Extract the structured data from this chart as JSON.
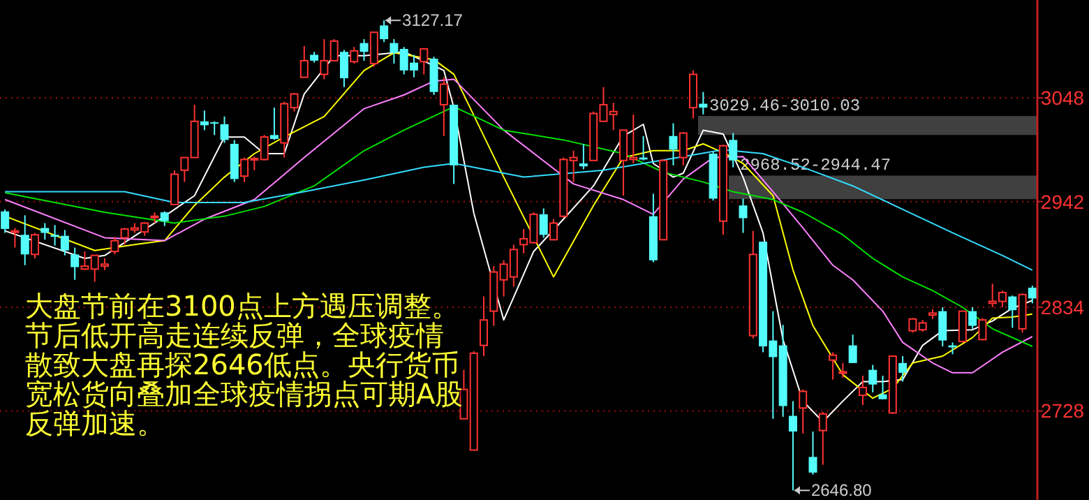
{
  "chart_data": {
    "type": "candlestick",
    "categories": [
      null,
      null,
      null,
      null,
      null,
      null,
      null,
      null,
      null,
      null,
      null,
      null,
      null,
      null,
      null,
      null,
      null,
      null,
      null,
      null,
      null,
      null,
      null,
      null,
      null,
      null,
      null,
      null,
      null,
      null,
      null,
      null,
      null,
      null,
      null,
      null,
      null,
      null,
      null,
      null,
      null,
      null,
      null,
      null,
      null,
      null,
      null,
      null,
      null,
      null,
      null,
      null,
      null,
      null,
      null,
      null,
      null,
      null,
      null,
      null,
      null,
      null,
      null,
      null,
      null,
      null,
      null,
      null,
      null,
      null,
      null,
      null,
      null,
      null,
      null,
      null,
      null,
      null,
      null,
      null,
      null,
      null,
      null,
      null,
      null,
      null,
      null,
      null,
      null,
      null,
      null,
      null,
      null,
      null,
      null,
      null,
      null,
      null,
      null,
      null,
      null,
      null,
      null,
      null
    ],
    "ohlc": [
      [
        2932,
        2934,
        2910,
        2914
      ],
      [
        2911,
        2915,
        2895,
        2912
      ],
      [
        2908,
        2928,
        2877,
        2888
      ],
      [
        2888,
        2910,
        2884,
        2908
      ],
      [
        2915,
        2920,
        2903,
        2910
      ],
      [
        2908,
        2918,
        2897,
        2906
      ],
      [
        2907,
        2913,
        2887,
        2892
      ],
      [
        2888,
        2895,
        2862,
        2875
      ],
      [
        2873,
        2891,
        2872,
        2876
      ],
      [
        2873,
        2887,
        2860,
        2887
      ],
      [
        2876,
        2884,
        2872,
        2878
      ],
      [
        2891,
        2906,
        2888,
        2902
      ],
      [
        2905,
        2915,
        2898,
        2914
      ],
      [
        2913,
        2920,
        2910,
        2915
      ],
      [
        2911,
        2921,
        2907,
        2920
      ],
      [
        2926,
        2931,
        2920,
        2927
      ],
      [
        2931,
        2932,
        2917,
        2922
      ],
      [
        2939,
        2974,
        2939,
        2970
      ],
      [
        2974,
        2987,
        2962,
        2987
      ],
      [
        2987,
        3041,
        2987,
        3024
      ],
      [
        3024,
        3035,
        3015,
        3020
      ],
      [
        3023,
        3024,
        3010,
        3022
      ],
      [
        3021,
        3029,
        3002,
        3005
      ],
      [
        3001,
        3005,
        2962,
        2965
      ],
      [
        2968,
        2987,
        2962,
        2985
      ],
      [
        2985,
        2988,
        2974,
        2986
      ],
      [
        2985,
        3010,
        2984,
        3008
      ],
      [
        3010,
        3038,
        3005,
        3006
      ],
      [
        3002,
        3044,
        2987,
        3042
      ],
      [
        3038,
        3053,
        3034,
        3052
      ],
      [
        3069,
        3101,
        3069,
        3086
      ],
      [
        3092,
        3095,
        3084,
        3086
      ],
      [
        3072,
        3108,
        3067,
        3086
      ],
      [
        3086,
        3108,
        3086,
        3106
      ],
      [
        3095,
        3097,
        3059,
        3068
      ],
      [
        3085,
        3100,
        3083,
        3096
      ],
      [
        3104,
        3108,
        3086,
        3095
      ],
      [
        3083,
        3115,
        3080,
        3115
      ],
      [
        3122,
        3127.17,
        3105,
        3108
      ],
      [
        3104,
        3108,
        3083,
        3094
      ],
      [
        3098,
        3100,
        3072,
        3076
      ],
      [
        3084,
        3092,
        3069,
        3076
      ],
      [
        3085,
        3098,
        3072,
        3098
      ],
      [
        3088,
        3090,
        3051,
        3054
      ],
      [
        3041,
        3069,
        3009,
        3062
      ],
      [
        3041,
        3041,
        2960,
        2979
      ],
      [
        2720,
        2770,
        2720,
        2750
      ],
      [
        2688,
        2789,
        2688,
        2787
      ],
      [
        2795,
        2845,
        2784,
        2821
      ],
      [
        2830,
        2876,
        2815,
        2870
      ],
      [
        2862,
        2882,
        2845,
        2878
      ],
      [
        2865,
        2898,
        2855,
        2893
      ],
      [
        2898,
        2914,
        2889,
        2904
      ],
      [
        2900,
        2931,
        2899,
        2929
      ],
      [
        2929,
        2935,
        2905,
        2908
      ],
      [
        2903,
        2924,
        2903,
        2920
      ],
      [
        2927,
        2987,
        2925,
        2985
      ],
      [
        2984,
        2994,
        2962,
        2987
      ],
      [
        2981,
        3001,
        2975,
        2978
      ],
      [
        2984,
        3034,
        2984,
        3032
      ],
      [
        3024,
        3059,
        3024,
        3041
      ],
      [
        3031,
        3043,
        3015,
        3034
      ],
      [
        2984,
        3015,
        2948,
        3015
      ],
      [
        2985,
        3031,
        2981,
        2987
      ],
      [
        2987,
        3009,
        2984,
        2985
      ],
      [
        2927,
        2950,
        2880,
        2882
      ],
      [
        2903,
        2985,
        2903,
        2984
      ],
      [
        3009,
        3022,
        2979,
        2995
      ],
      [
        2987,
        3013,
        2979,
        3012
      ],
      [
        3038,
        3076,
        3027,
        3072
      ],
      [
        3042,
        3054,
        3031,
        3038
      ],
      [
        2991,
        2993,
        2943,
        2945
      ],
      [
        2922,
        3000,
        2908,
        2999
      ],
      [
        3005,
        3012,
        2977,
        2984
      ],
      [
        2938,
        2945,
        2910,
        2925
      ],
      [
        2805,
        2912,
        2802,
        2888
      ],
      [
        2901,
        2901,
        2788,
        2794
      ],
      [
        2800,
        2830,
        2720,
        2783
      ],
      [
        2795,
        2816,
        2722,
        2733
      ],
      [
        2723,
        2738,
        2646.8,
        2707
      ],
      [
        2731,
        2750,
        2705,
        2748
      ],
      [
        2681,
        2707,
        2663,
        2665
      ],
      [
        2708,
        2727,
        2673,
        2725
      ],
      [
        2780,
        2788,
        2760,
        2785
      ],
      [
        2767,
        2777,
        2762,
        2768
      ],
      [
        2795,
        2806,
        2777,
        2777
      ],
      [
        2744,
        2764,
        2734,
        2752
      ],
      [
        2770,
        2775,
        2747,
        2755
      ],
      [
        2745,
        2764,
        2740,
        2740
      ],
      [
        2726,
        2784,
        2725,
        2784
      ],
      [
        2777,
        2784,
        2758,
        2767
      ],
      [
        2810,
        2823,
        2808,
        2822
      ],
      [
        2811,
        2821,
        2809,
        2818
      ],
      [
        2826,
        2832,
        2822,
        2828
      ],
      [
        2830,
        2834,
        2794,
        2800
      ],
      [
        2795,
        2798,
        2786,
        2793
      ],
      [
        2799,
        2830,
        2798,
        2830
      ],
      [
        2830,
        2834,
        2812,
        2815
      ],
      [
        2801,
        2823,
        2800,
        2821
      ],
      [
        2838,
        2858,
        2834,
        2840
      ],
      [
        2840,
        2851,
        2834,
        2849
      ],
      [
        2845,
        2846,
        2813,
        2831
      ],
      [
        2812,
        2848,
        2808,
        2847
      ],
      [
        2854,
        2856,
        2838,
        2843
      ]
    ],
    "series": [
      {
        "type": "line",
        "color": "#ffffff",
        "values": [
          2912,
          null,
          null,
          null,
          null,
          null,
          null,
          null,
          2884,
          null,
          2887,
          null,
          null,
          null,
          null,
          2920,
          null,
          null,
          null,
          2948,
          null,
          null,
          3008,
          null,
          3008,
          null,
          2991,
          null,
          2991,
          null,
          3052,
          null,
          null,
          3091,
          null,
          null,
          3091,
          null,
          null,
          null,
          3095,
          null,
          null,
          null,
          3076,
          3038,
          null,
          2930,
          null,
          null,
          2821,
          null,
          null,
          2891,
          null,
          null,
          2924,
          null,
          null,
          2958,
          null,
          null,
          3009,
          null,
          3021,
          2981,
          null,
          2967,
          2971,
          null,
          3015,
          null,
          3011,
          null,
          2967,
          null,
          2910,
          null,
          2801,
          null,
          2738,
          null,
          2717,
          null,
          2738,
          null,
          2758,
          null,
          2758,
          null,
          2760,
          null,
          2795,
          null,
          2810,
          null,
          null,
          2811,
          null,
          2820,
          null,
          2833,
          null,
          2841
        ]
      },
      {
        "type": "line",
        "color": "#ffff00",
        "values": [
          2927,
          null,
          null,
          null,
          null,
          null,
          null,
          null,
          null,
          2892,
          null,
          null,
          null,
          2898,
          null,
          null,
          2902,
          null,
          null,
          2938,
          null,
          null,
          2967,
          null,
          null,
          2991,
          null,
          null,
          3008,
          null,
          null,
          null,
          3029,
          null,
          null,
          null,
          3076,
          null,
          null,
          3094,
          null,
          null,
          null,
          3087,
          null,
          3072,
          null,
          null,
          null,
          null,
          2967,
          null,
          null,
          null,
          null,
          2865,
          null,
          null,
          null,
          2938,
          null,
          null,
          2987,
          null,
          null,
          2994,
          null,
          null,
          2994,
          null,
          3001,
          null,
          2992,
          null,
          2981,
          null,
          null,
          2948,
          null,
          2872,
          null,
          2815,
          null,
          null,
          2765,
          null,
          null,
          2741,
          null,
          2751,
          null,
          2777,
          null,
          null,
          2784,
          null,
          null,
          2803,
          null,
          2823,
          null,
          2824,
          null,
          2827
        ]
      },
      {
        "type": "line",
        "color": "#ff80ff",
        "values": [
          2944,
          null,
          null,
          null,
          null,
          null,
          null,
          null,
          null,
          null,
          2905,
          null,
          null,
          null,
          null,
          null,
          2902,
          null,
          null,
          null,
          2924,
          null,
          null,
          null,
          null,
          2944,
          null,
          null,
          null,
          null,
          2987,
          null,
          null,
          null,
          null,
          null,
          3037,
          null,
          null,
          null,
          3051,
          null,
          null,
          3065,
          null,
          3067,
          null,
          null,
          null,
          null,
          3015,
          null,
          null,
          null,
          null,
          null,
          null,
          2960,
          null,
          null,
          null,
          null,
          2944,
          null,
          null,
          2929,
          null,
          null,
          2965,
          null,
          null,
          2987,
          null,
          null,
          2988,
          null,
          null,
          2952,
          null,
          null,
          2915,
          null,
          null,
          2877,
          null,
          2862,
          null,
          null,
          2830,
          null,
          2798,
          null,
          null,
          2777,
          null,
          2767,
          null,
          2767,
          null,
          null,
          2788,
          null,
          null,
          2804
        ]
      },
      {
        "type": "line",
        "color": "#00e000",
        "values": [
          2951,
          null,
          null,
          null,
          null,
          null,
          null,
          null,
          null,
          null,
          2931,
          null,
          null,
          null,
          null,
          null,
          null,
          2920,
          null,
          null,
          null,
          null,
          2927,
          null,
          null,
          null,
          2937,
          null,
          null,
          null,
          null,
          2958,
          null,
          null,
          null,
          null,
          2994,
          null,
          null,
          null,
          3015,
          null,
          null,
          null,
          null,
          3039,
          null,
          null,
          null,
          null,
          3015,
          null,
          null,
          null,
          null,
          null,
          3005,
          null,
          null,
          null,
          null,
          null,
          2991,
          null,
          null,
          null,
          2972,
          null,
          null,
          null,
          2962,
          null,
          null,
          2952,
          null,
          null,
          null,
          2944,
          null,
          null,
          2931,
          null,
          null,
          null,
          2908,
          null,
          null,
          2884,
          null,
          null,
          2865,
          null,
          null,
          2851,
          null,
          null,
          2834,
          null,
          null,
          2812,
          null,
          null,
          null,
          2794
        ]
      },
      {
        "type": "line",
        "color": "#33ddff",
        "values": [
          2952,
          null,
          null,
          null,
          null,
          null,
          null,
          null,
          null,
          null,
          null,
          null,
          2952,
          null,
          null,
          null,
          null,
          2941,
          null,
          null,
          null,
          null,
          null,
          null,
          2941,
          null,
          null,
          null,
          null,
          null,
          2952,
          null,
          null,
          null,
          null,
          null,
          2964,
          null,
          null,
          null,
          null,
          null,
          2977,
          null,
          null,
          2981,
          null,
          null,
          null,
          null,
          null,
          null,
          2967,
          null,
          null,
          null,
          null,
          null,
          null,
          null,
          2974,
          null,
          null,
          null,
          null,
          null,
          null,
          null,
          2988,
          null,
          null,
          null,
          2995,
          null,
          null,
          null,
          2991,
          null,
          null,
          null,
          2977,
          null,
          null,
          null,
          null,
          2958,
          null,
          null,
          null,
          null,
          2934,
          null,
          null,
          null,
          null,
          2910,
          null,
          null,
          null,
          null,
          2887,
          null,
          null,
          2872
        ]
      }
    ],
    "ylim": [
      2637,
      3148
    ],
    "yticks": [
      2728,
      2834,
      2942,
      3048
    ],
    "grid": "y",
    "tick_labels": "y",
    "bands": [
      {
        "axis": "y",
        "from": 3010.03,
        "to": 3029.46,
        "label": "3029.46-3010.03",
        "color": "#404040"
      },
      {
        "axis": "y",
        "from": 2944.47,
        "to": 2968.52,
        "label": "2968.52-2944.47",
        "color": "#404040"
      }
    ],
    "annotations": [
      "3127.17",
      "2646.80",
      "大盘节前在3100点上方遇压调整。",
      "节后低开高走连续反弹，全球疫情",
      "散致大盘再探2646低点。央行货币",
      "宽松货向叠加全球疫情拐点可期A股",
      "反弹加速。"
    ]
  }
}
